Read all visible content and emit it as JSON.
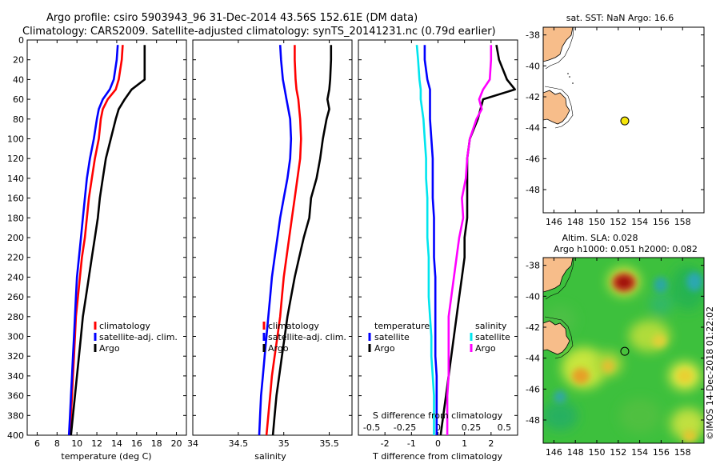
{
  "header": {
    "line1": "Argo profile: csiro 5903943_96 31-Dec-2014 43.56S 152.61E (DM data)",
    "line2": "Climatology: CARS2009. Satellite-adjusted climatology: synTS_20141231.nc (0.79d earlier)"
  },
  "colors": {
    "argo": "#000000",
    "climatology": "#ff0000",
    "satellite": "#0000ff",
    "satellite_s": "#00e5ee",
    "argo_s": "#ff00ff",
    "land": "#f7bd8a"
  },
  "chart_data": [
    {
      "type": "line",
      "id": "temperature",
      "xlabel": "temperature (deg C)",
      "ylabel": "",
      "xlim": [
        5,
        21
      ],
      "ylim": [
        400,
        0
      ],
      "xticks": [
        "6",
        "8",
        "10",
        "12",
        "14",
        "16",
        "18",
        "20"
      ],
      "yticks": [
        "0",
        "20",
        "40",
        "60",
        "80",
        "100",
        "120",
        "140",
        "160",
        "180",
        "200",
        "220",
        "240",
        "260",
        "280",
        "300",
        "320",
        "340",
        "360",
        "380",
        "400"
      ],
      "depth": [
        5,
        20,
        40,
        50,
        60,
        70,
        80,
        100,
        120,
        140,
        160,
        180,
        200,
        220,
        240,
        260,
        280,
        300,
        320,
        340,
        360,
        380,
        400
      ],
      "series": [
        {
          "name": "climatology",
          "color": "#ff0000",
          "values": [
            14.6,
            14.5,
            14.2,
            13.9,
            13.1,
            12.6,
            12.4,
            12.2,
            11.8,
            11.5,
            11.2,
            11.0,
            10.8,
            10.5,
            10.3,
            10.1,
            9.9,
            9.8,
            9.7,
            9.6,
            9.5,
            9.4,
            9.3
          ]
        },
        {
          "name": "satellite-adj. clim.",
          "color": "#0000ff",
          "values": [
            14.1,
            14.0,
            13.7,
            13.3,
            12.6,
            12.2,
            12.0,
            11.7,
            11.3,
            11.0,
            10.8,
            10.6,
            10.4,
            10.2,
            10.0,
            9.9,
            9.8,
            9.7,
            9.6,
            9.5,
            9.4,
            9.3,
            9.2
          ]
        },
        {
          "name": "Argo",
          "color": "#000000",
          "values": [
            16.8,
            16.8,
            16.8,
            15.5,
            14.8,
            14.2,
            13.9,
            13.4,
            12.9,
            12.6,
            12.3,
            12.1,
            11.8,
            11.5,
            11.2,
            10.9,
            10.6,
            10.4,
            10.2,
            10.0,
            9.8,
            9.6,
            9.4
          ]
        }
      ],
      "legend": [
        "climatology",
        "satellite-adj. clim.",
        "Argo"
      ]
    },
    {
      "type": "line",
      "id": "salinity",
      "xlabel": "salinity",
      "ylabel": "",
      "xlim": [
        34,
        35.75
      ],
      "ylim": [
        400,
        0
      ],
      "xticks": [
        "34",
        "34.5",
        "35",
        "35.5"
      ],
      "depth": [
        5,
        20,
        40,
        50,
        60,
        70,
        80,
        100,
        120,
        140,
        160,
        180,
        200,
        220,
        240,
        260,
        280,
        300,
        320,
        340,
        360,
        380,
        400
      ],
      "series": [
        {
          "name": "climatology",
          "color": "#ff0000",
          "values": [
            35.12,
            35.12,
            35.13,
            35.14,
            35.16,
            35.17,
            35.18,
            35.19,
            35.18,
            35.15,
            35.12,
            35.09,
            35.06,
            35.03,
            35.0,
            34.98,
            34.96,
            34.93,
            34.9,
            34.87,
            34.85,
            34.83,
            34.81
          ]
        },
        {
          "name": "satellite-adj. clim.",
          "color": "#0000ff",
          "values": [
            34.96,
            34.97,
            34.99,
            35.01,
            35.03,
            35.05,
            35.07,
            35.08,
            35.07,
            35.04,
            35.0,
            34.96,
            34.93,
            34.9,
            34.87,
            34.85,
            34.83,
            34.81,
            34.79,
            34.77,
            34.75,
            34.74,
            34.73
          ]
        },
        {
          "name": "Argo",
          "color": "#000000",
          "values": [
            35.52,
            35.52,
            35.51,
            35.5,
            35.48,
            35.5,
            35.47,
            35.43,
            35.4,
            35.36,
            35.3,
            35.28,
            35.22,
            35.17,
            35.12,
            35.08,
            35.04,
            35.01,
            34.98,
            34.95,
            34.92,
            34.9,
            34.88
          ]
        }
      ],
      "legend": [
        "climatology",
        "satellite-adj. clim.",
        "Argo"
      ]
    },
    {
      "type": "line",
      "id": "difference",
      "xlabel": "T difference from climatology",
      "xlabel_top": "S difference from climatology",
      "xlim": [
        -3,
        3
      ],
      "ylim": [
        400,
        0
      ],
      "xticks": [
        "-2",
        "-1",
        "0",
        "1",
        "2"
      ],
      "xticks_s": [
        "-0.5",
        "-0.25",
        "0",
        "0.25",
        "0.5"
      ],
      "depth": [
        5,
        20,
        40,
        50,
        60,
        70,
        80,
        100,
        120,
        140,
        160,
        180,
        200,
        220,
        240,
        260,
        280,
        300,
        320,
        340,
        360,
        380,
        400
      ],
      "series": [
        {
          "name": "temperature satellite",
          "color": "#0000ff",
          "values": [
            -0.5,
            -0.5,
            -0.4,
            -0.3,
            -0.3,
            -0.3,
            -0.3,
            -0.25,
            -0.2,
            -0.2,
            -0.2,
            -0.15,
            -0.15,
            -0.15,
            -0.1,
            -0.1,
            -0.1,
            -0.1,
            -0.1,
            -0.05,
            -0.05,
            -0.05,
            -0.05
          ]
        },
        {
          "name": "temperature Argo",
          "color": "#000000",
          "values": [
            2.2,
            2.3,
            2.6,
            2.9,
            1.7,
            1.6,
            1.5,
            1.2,
            1.1,
            1.1,
            1.1,
            1.1,
            1.0,
            1.0,
            0.9,
            0.8,
            0.7,
            0.6,
            0.5,
            0.4,
            0.3,
            0.2,
            0.1
          ]
        },
        {
          "name": "salinity satellite",
          "color": "#00e5ee",
          "values": [
            -0.16,
            -0.15,
            -0.14,
            -0.13,
            -0.13,
            -0.12,
            -0.11,
            -0.1,
            -0.09,
            -0.09,
            -0.08,
            -0.08,
            -0.08,
            -0.07,
            -0.07,
            -0.07,
            -0.06,
            -0.05,
            -0.05,
            -0.04,
            -0.03,
            -0.03,
            -0.03
          ]
        },
        {
          "name": "salinity Argo",
          "color": "#ff00ff",
          "values": [
            0.4,
            0.4,
            0.39,
            0.34,
            0.31,
            0.33,
            0.29,
            0.24,
            0.22,
            0.21,
            0.18,
            0.19,
            0.16,
            0.14,
            0.12,
            0.1,
            0.08,
            0.08,
            0.08,
            0.08,
            0.07,
            0.07,
            0.07
          ]
        }
      ],
      "legend_temperature": {
        "title": "temperature",
        "items": [
          "satellite",
          "Argo"
        ]
      },
      "legend_salinity": {
        "title": "salinity",
        "items": [
          "satellite",
          "Argo"
        ]
      }
    },
    {
      "type": "map",
      "id": "sst_map",
      "title": "sat. SST: NaN Argo: 16.6",
      "xticks": [
        "146",
        "148",
        "150",
        "152",
        "154",
        "156",
        "158"
      ],
      "yticks": [
        "-38",
        "-40",
        "-42",
        "-44",
        "-46",
        "-48"
      ],
      "lon_range": [
        145,
        160
      ],
      "lat_range": [
        -49.5,
        -37.5
      ],
      "argo_position": {
        "lon": 152.61,
        "lat": -43.56
      }
    },
    {
      "type": "heatmap",
      "id": "sla_map",
      "title1": "Altim. SLA: 0.028",
      "title2": "Argo h1000: 0.051 h2000: 0.082",
      "xticks": [
        "146",
        "148",
        "150",
        "152",
        "154",
        "156",
        "158"
      ],
      "yticks": [
        "-38",
        "-40",
        "-42",
        "-44",
        "-46",
        "-48"
      ],
      "lon_range": [
        145,
        160
      ],
      "lat_range": [
        -49.5,
        -37.5
      ],
      "argo_position": {
        "lon": 152.61,
        "lat": -43.56
      }
    }
  ],
  "credit": "©IMOS 14-Dec-2018 01:22:02"
}
